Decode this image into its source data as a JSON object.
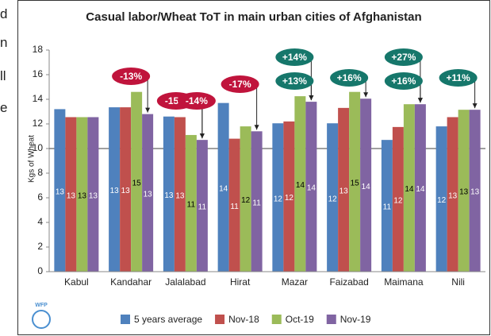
{
  "background_text": [
    "d",
    "n",
    "ll",
    "e"
  ],
  "chart_data": {
    "type": "bar",
    "title": "Casual labor/Wheat ToT in main urban cities of Afghanistan",
    "y_label": "Kgs of Wheat",
    "categories": [
      "Kabul",
      "Kandahar",
      "Jalalabad",
      "Hirat",
      "Mazar",
      "Faizabad",
      "Maimana",
      "Nili"
    ],
    "series": [
      {
        "name": "5 years average",
        "color": "#4f81bd",
        "values": [
          13.2,
          13.35,
          12.6,
          13.7,
          12.05,
          12.05,
          10.7,
          11.8
        ],
        "value_labels": [
          "13",
          "13",
          "13",
          "14",
          "12",
          "12",
          "11",
          "12"
        ]
      },
      {
        "name": "Nov-18",
        "color": "#c0504d",
        "values": [
          12.55,
          13.35,
          12.55,
          10.8,
          12.2,
          13.3,
          11.75,
          12.55
        ],
        "value_labels": [
          "13",
          "13",
          "13",
          "11",
          "12",
          "13",
          "12",
          "13"
        ]
      },
      {
        "name": "Oct-19",
        "color": "#9bbb59",
        "values": [
          12.55,
          14.6,
          11.1,
          11.8,
          14.25,
          14.6,
          13.6,
          13.15
        ],
        "value_labels": [
          "13",
          "15",
          "11",
          "12",
          "14",
          "15",
          "14",
          "13"
        ]
      },
      {
        "name": "Nov-19",
        "color": "#8064a2",
        "values": [
          12.55,
          12.8,
          10.7,
          11.4,
          13.8,
          14.05,
          13.6,
          13.15
        ],
        "value_labels": [
          "13",
          "13",
          "11",
          "11",
          "14",
          "14",
          "14",
          "13"
        ]
      }
    ],
    "ylim": [
      0,
      18
    ],
    "yticks": [
      0,
      2,
      4,
      6,
      8,
      10,
      12,
      14,
      16,
      18
    ],
    "reference_line": 10,
    "legend": "bottom",
    "logo_text": "WFP",
    "annotations": [
      {
        "text": "-13%",
        "category": 1,
        "color": "#c0143c"
      },
      {
        "text": "-15%",
        "category": 2,
        "color": "#c0143c"
      },
      {
        "text": "-14%",
        "category": 2,
        "color": "#c0143c"
      },
      {
        "text": "-17%",
        "category": 3,
        "color": "#c0143c"
      },
      {
        "text": "+14%",
        "category": 4,
        "color": "#16776b"
      },
      {
        "text": "+13%",
        "category": 4,
        "color": "#16776b"
      },
      {
        "text": "+16%",
        "category": 5,
        "color": "#16776b"
      },
      {
        "text": "+27%",
        "category": 6,
        "color": "#16776b"
      },
      {
        "text": "+16%",
        "category": 6,
        "color": "#16776b"
      },
      {
        "text": "+11%",
        "category": 7,
        "color": "#16776b"
      }
    ]
  }
}
